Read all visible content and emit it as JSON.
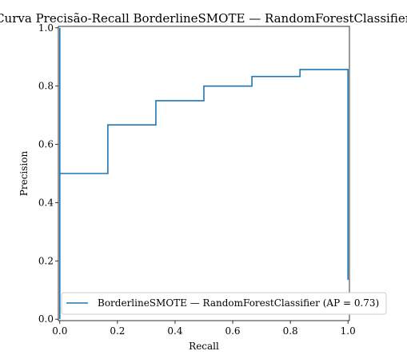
{
  "chart_data": {
    "type": "line",
    "title": "Curva Precisão-Recall BorderlineSMOTE — RandomForestClassifier",
    "xlabel": "Recall",
    "ylabel": "Precision",
    "xlim": [
      -0.005,
      1.005
    ],
    "ylim": [
      -0.005,
      1.005
    ],
    "xticks": [
      0.0,
      0.2,
      0.4,
      0.6,
      0.8,
      1.0
    ],
    "xtick_labels": [
      "0.0",
      "0.2",
      "0.4",
      "0.6",
      "0.8",
      "1.0"
    ],
    "yticks": [
      0.0,
      0.2,
      0.4,
      0.6,
      0.8,
      1.0
    ],
    "ytick_labels": [
      "0.0",
      "0.2",
      "0.4",
      "0.6",
      "0.8",
      "1.0"
    ],
    "grid": false,
    "legend_position": "lower-right",
    "series": [
      {
        "name": "BorderlineSMOTE — RandomForestClassifier (AP = 0.73)",
        "color": "#1f77b4",
        "drawstyle": "steps",
        "x": [
          0.0,
          0.0,
          0.0,
          0.1667,
          0.1667,
          0.3333,
          0.3333,
          0.5,
          0.5,
          0.6667,
          0.6667,
          0.8333,
          0.8333,
          1.0,
          1.0
        ],
        "y": [
          0.0,
          1.0,
          0.5,
          0.5,
          0.667,
          0.667,
          0.75,
          0.75,
          0.8,
          0.8,
          0.833,
          0.833,
          0.857,
          0.857,
          0.135
        ]
      }
    ]
  }
}
